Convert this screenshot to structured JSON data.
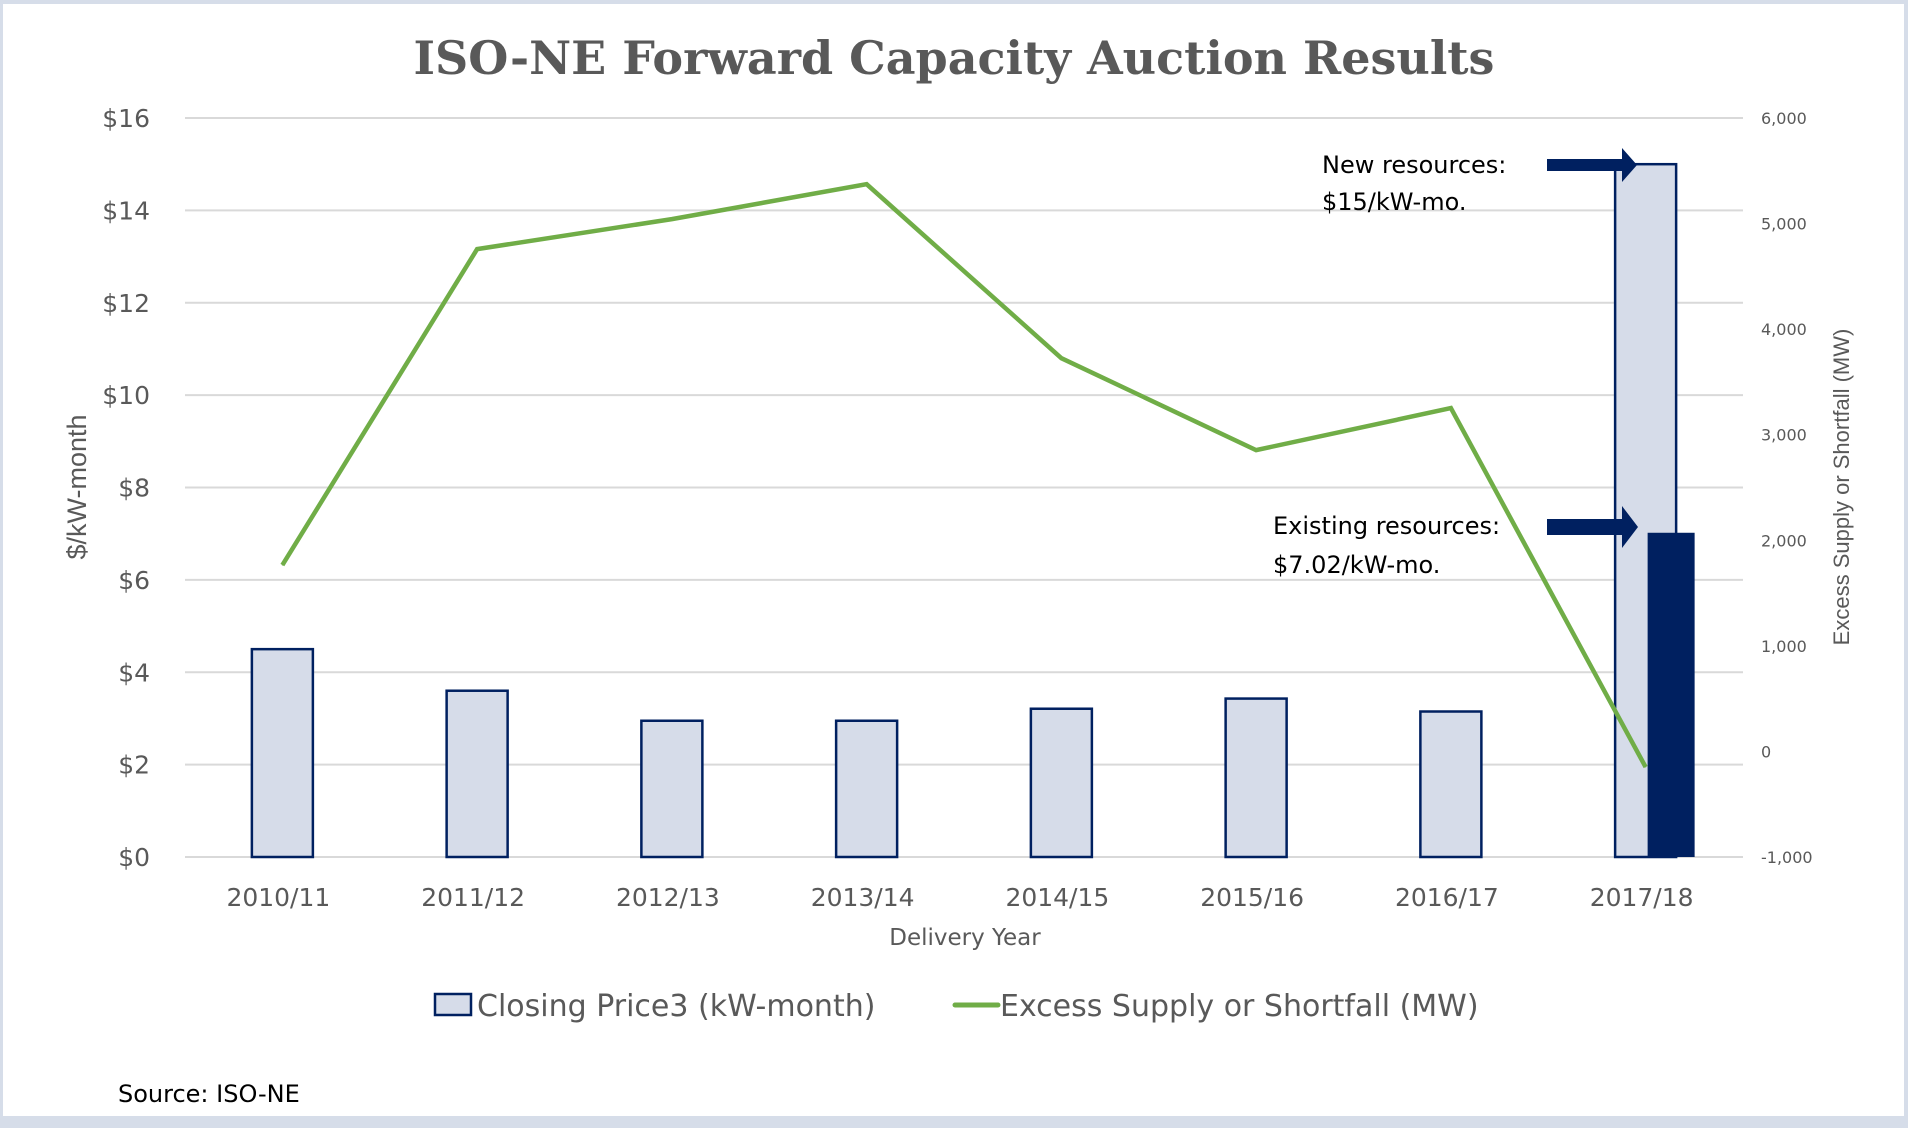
{
  "chart_data": {
    "type": "bar",
    "title": "ISO-NE Forward Capacity Auction Results",
    "xlabel": "Delivery Year",
    "ylabel": "$/kW-month",
    "y2label": "Excess Supply or Shortfall (MW)",
    "categories": [
      "2010/11",
      "2011/12",
      "2012/13",
      "2013/14",
      "2014/15",
      "2015/16",
      "2016/17",
      "2017/18"
    ],
    "ylim": [
      0,
      16
    ],
    "y_ticks": [
      0,
      2,
      4,
      6,
      8,
      10,
      12,
      14,
      16
    ],
    "y_tick_labels": [
      "$0",
      "$2",
      "$4",
      "$6",
      "$8",
      "$10",
      "$12",
      "$14",
      "$16"
    ],
    "y2lim": [
      -1000,
      6000
    ],
    "y2_ticks": [
      -1000,
      0,
      1000,
      2000,
      3000,
      4000,
      5000,
      6000
    ],
    "y2_tick_labels": [
      "-1,000",
      "0",
      "1,000",
      "2,000",
      "3,000",
      "4,000",
      "5,000",
      "6,000"
    ],
    "grid": true,
    "legend_position": "bottom",
    "series": [
      {
        "name": "Closing Price3 (kW-month)",
        "type": "bar",
        "axis": "left",
        "values": [
          4.5,
          3.6,
          2.95,
          2.95,
          3.21,
          3.43,
          3.15,
          15.0
        ],
        "fill": "#d6dce9",
        "stroke": "#002060"
      },
      {
        "name": "Excess Supply or Shortfall (MW)",
        "type": "line",
        "axis": "right",
        "values": [
          1765,
          4758,
          5042,
          5373,
          3725,
          2854,
          3252,
          -148
        ],
        "color": "#70ad47"
      }
    ],
    "overlay_bar": {
      "category": "2017/18",
      "label": "Existing resources",
      "value": 7.02,
      "fill": "#002060"
    },
    "annotations": [
      {
        "id": "new",
        "line1": "New resources:",
        "line2": "$15/kW-mo.",
        "target_value": 15.0
      },
      {
        "id": "existing",
        "line1": "Existing resources:",
        "line2": "$7.02/kW-mo.",
        "target_value": 7.02
      }
    ]
  },
  "source": "Source: ISO-NE"
}
